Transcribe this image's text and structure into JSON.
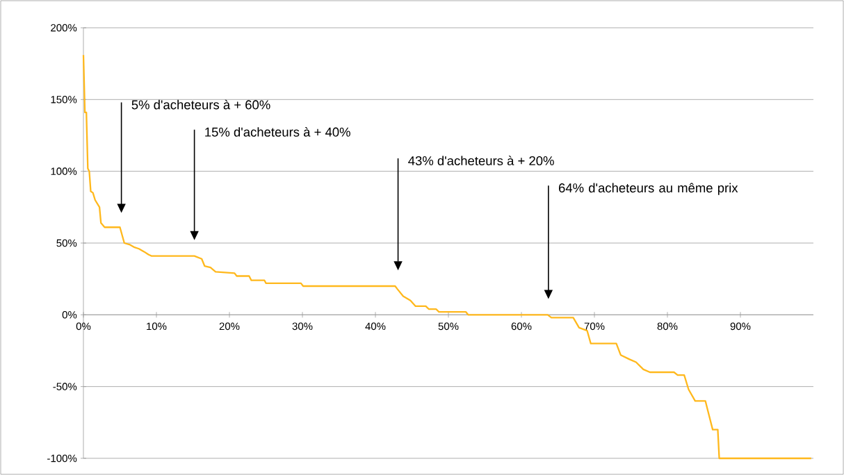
{
  "chart_data": {
    "type": "line",
    "color": "#ffb81c",
    "line_style": "solid",
    "marker": "none",
    "grid": "y",
    "x": [
      0,
      0.2,
      0.4,
      0.6,
      0.8,
      1.0,
      1.3,
      1.6,
      2.2,
      2.4,
      2.9,
      5.0,
      5.6,
      6.3,
      7.0,
      7.6,
      8.3,
      8.9,
      9.3,
      15.2,
      16.2,
      16.6,
      17.4,
      18.1,
      20.7,
      21.0,
      22.7,
      23.0,
      24.8,
      25.0,
      29.8,
      30.1,
      42.7,
      43.0,
      43.8,
      44.8,
      45.5,
      46.9,
      47.3,
      48.3,
      48.7,
      52.4,
      52.7,
      63.6,
      64.1,
      67.1,
      67.9,
      69.0,
      69.5,
      73.0,
      73.6,
      74.8,
      75.7,
      76.7,
      77.6,
      80.9,
      81.4,
      82.3,
      82.9,
      83.8,
      85.2,
      85.7,
      86.2,
      86.9,
      87.1,
      99.7
    ],
    "values": [
      181,
      141,
      141,
      102,
      100,
      86,
      85,
      80,
      75,
      64,
      61,
      61,
      50,
      49,
      47,
      46,
      44,
      42,
      41,
      41,
      39,
      34,
      33,
      30,
      29,
      27,
      27,
      24,
      24,
      22,
      22,
      20,
      20,
      18,
      13,
      10,
      6,
      6,
      4,
      4,
      2,
      2,
      0,
      0,
      -2,
      -2,
      -9,
      -11,
      -20,
      -20,
      -28,
      -31,
      -33,
      -38,
      -40,
      -40,
      -42,
      -42,
      -52,
      -60,
      -60,
      -70,
      -80,
      -80,
      -100,
      -100
    ],
    "xlim": [
      0,
      100
    ],
    "xticks": [
      {
        "value": 0,
        "label": "0%"
      },
      {
        "value": 10,
        "label": "10%"
      },
      {
        "value": 20,
        "label": "20%"
      },
      {
        "value": 30,
        "label": "30%"
      },
      {
        "value": 40,
        "label": "40%"
      },
      {
        "value": 50,
        "label": "50%"
      },
      {
        "value": 60,
        "label": "60%"
      },
      {
        "value": 70,
        "label": "70%"
      },
      {
        "value": 80,
        "label": "80%"
      },
      {
        "value": 90,
        "label": "90%"
      }
    ],
    "ylim": [
      -100,
      200
    ],
    "yticks": [
      {
        "value": -100,
        "label": "-100%"
      },
      {
        "value": -50,
        "label": "-50%"
      },
      {
        "value": 0,
        "label": "0%"
      },
      {
        "value": 50,
        "label": "50%"
      },
      {
        "value": 100,
        "label": "100%"
      },
      {
        "value": 150,
        "label": "150%"
      },
      {
        "value": 200,
        "label": "200%"
      }
    ],
    "annotations": [
      "5% d'acheteurs à + 60%",
      "15% d'acheteurs à + 40%",
      "43% d'acheteurs à + 20%",
      "64% d'acheteurs au même prix"
    ]
  }
}
